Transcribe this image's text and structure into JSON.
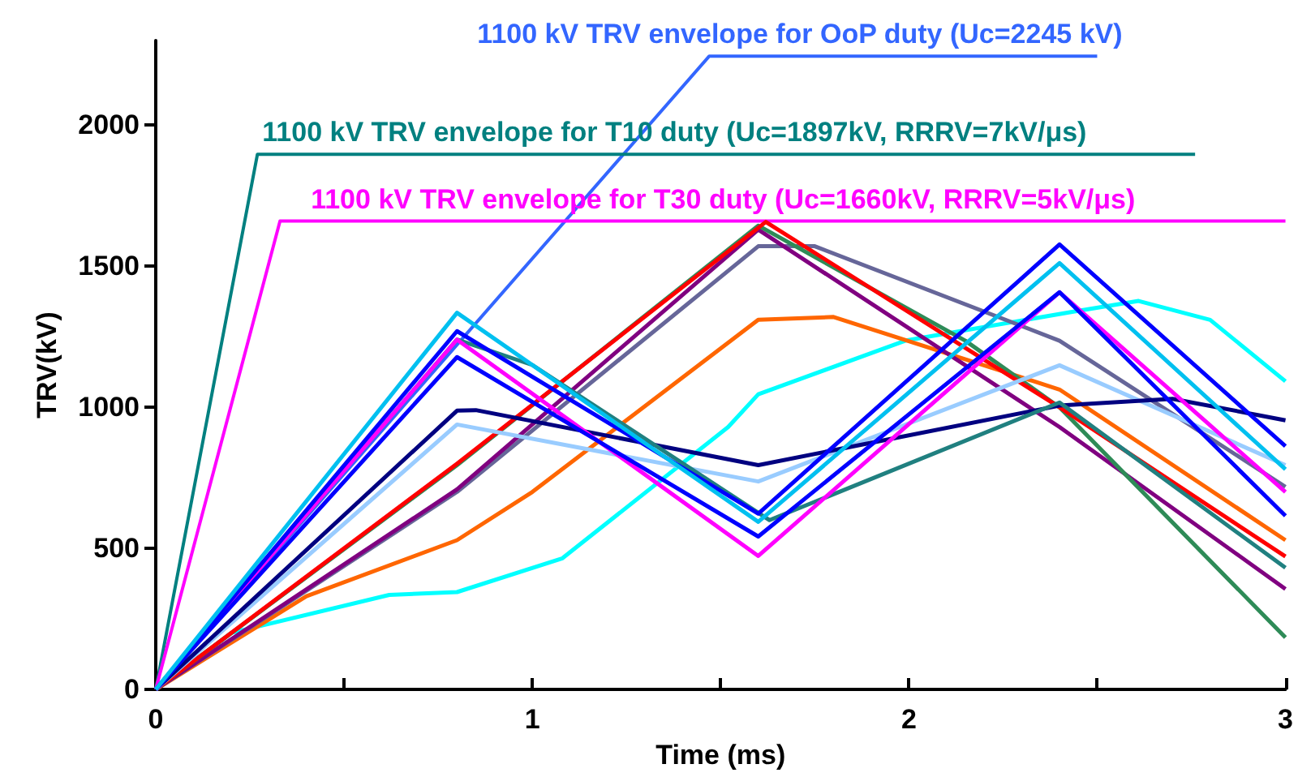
{
  "chart_data": {
    "type": "line",
    "xlabel": "Time (ms)",
    "ylabel": "TRV(kV)",
    "xlim": [
      0,
      3
    ],
    "ylim": [
      0,
      2300
    ],
    "xticks": [
      0,
      {
        "value": 0.5,
        "label": null
      },
      1,
      {
        "value": 1.5,
        "label": null
      },
      2,
      {
        "value": 2.5,
        "label": null
      },
      3
    ],
    "yticks": [
      0,
      500,
      1000,
      1500,
      2000
    ],
    "grid": false,
    "legend": false,
    "line_style": "solid",
    "series": [
      {
        "name": "1100 kV TRV envelope for OoP duty (Uc=2245 kV)",
        "color": "#3366ff",
        "x": [
          0,
          1.47,
          2.5
        ],
        "values": [
          0,
          2245,
          2245
        ]
      },
      {
        "name": "1100 kV TRV envelope for T10 duty (Uc=1897kV, RRRV=7kV/μs)",
        "color": "#008080",
        "x": [
          0,
          0.27,
          2.76
        ],
        "values": [
          0,
          1897,
          1897
        ]
      },
      {
        "name": "1100 kV TRV envelope for T30 duty (Uc=1660kV, RRRV=5kV/μs)",
        "color": "#ff00ff",
        "x": [
          0,
          0.33,
          3
        ],
        "values": [
          0,
          1660,
          1660
        ]
      },
      {
        "color": "#00ffff",
        "x": [
          0,
          0.2,
          0.62,
          0.8,
          1.08,
          1.52,
          1.6,
          1.99,
          2.44,
          2.61,
          2.8,
          3
        ],
        "values": [
          0,
          200,
          335,
          345,
          465,
          930,
          1046,
          1236,
          1340,
          1377,
          1310,
          1092
        ]
      },
      {
        "color": "#ff6600",
        "x": [
          0,
          0.4,
          0.8,
          1.0,
          1.6,
          1.8,
          2.4,
          3
        ],
        "values": [
          0,
          330,
          529,
          700,
          1310,
          1320,
          1063,
          529
        ]
      },
      {
        "color": "#666699",
        "x": [
          0,
          0.8,
          1.6,
          1.75,
          2.4,
          3
        ],
        "values": [
          0,
          700,
          1571,
          1571,
          1236,
          718
        ]
      },
      {
        "color": "#800080",
        "x": [
          0,
          0.8,
          1.6,
          2.4,
          3
        ],
        "values": [
          0,
          709,
          1630,
          930,
          356
        ]
      },
      {
        "color": "#2e8b57",
        "x": [
          0,
          0.8,
          1.6,
          2.15,
          2.4,
          3
        ],
        "values": [
          0,
          795,
          1644,
          1236,
          1000,
          184
        ]
      },
      {
        "color": "#ff0000",
        "x": [
          0,
          0.8,
          1.62,
          2.4,
          3
        ],
        "values": [
          0,
          800,
          1657,
          1000,
          471
        ]
      },
      {
        "color": "#99ccff",
        "x": [
          0,
          0.8,
          1.6,
          2.4,
          3
        ],
        "values": [
          0,
          939,
          737,
          1149,
          795
        ]
      },
      {
        "color": "#000080",
        "x": [
          0,
          0.8,
          0.85,
          1.6,
          2.4,
          2.7,
          3
        ],
        "values": [
          0,
          988,
          990,
          795,
          1006,
          1030,
          954
        ]
      },
      {
        "color": "#208080",
        "x": [
          0,
          0.8,
          1.0,
          1.63,
          2.4,
          3
        ],
        "values": [
          0,
          1240,
          1150,
          600,
          1017,
          431
        ]
      },
      {
        "color": "#ff00ff",
        "x": [
          0,
          0.8,
          1.6,
          2.4,
          3
        ],
        "values": [
          0,
          1240,
          473,
          1408,
          700
        ]
      },
      {
        "color": "#0000ff",
        "x": [
          0,
          0.8,
          1.6,
          2.4,
          3
        ],
        "values": [
          0,
          1178,
          542,
          1408,
          615
        ]
      },
      {
        "color": "#0000ff",
        "x": [
          0,
          0.8,
          1.6,
          2.4,
          3
        ],
        "values": [
          0,
          1270,
          623,
          1577,
          862
        ]
      },
      {
        "color": "#00c0f0",
        "x": [
          0,
          0.8,
          1.6,
          2.4,
          3
        ],
        "values": [
          0,
          1335,
          594,
          1511,
          780
        ]
      }
    ]
  }
}
